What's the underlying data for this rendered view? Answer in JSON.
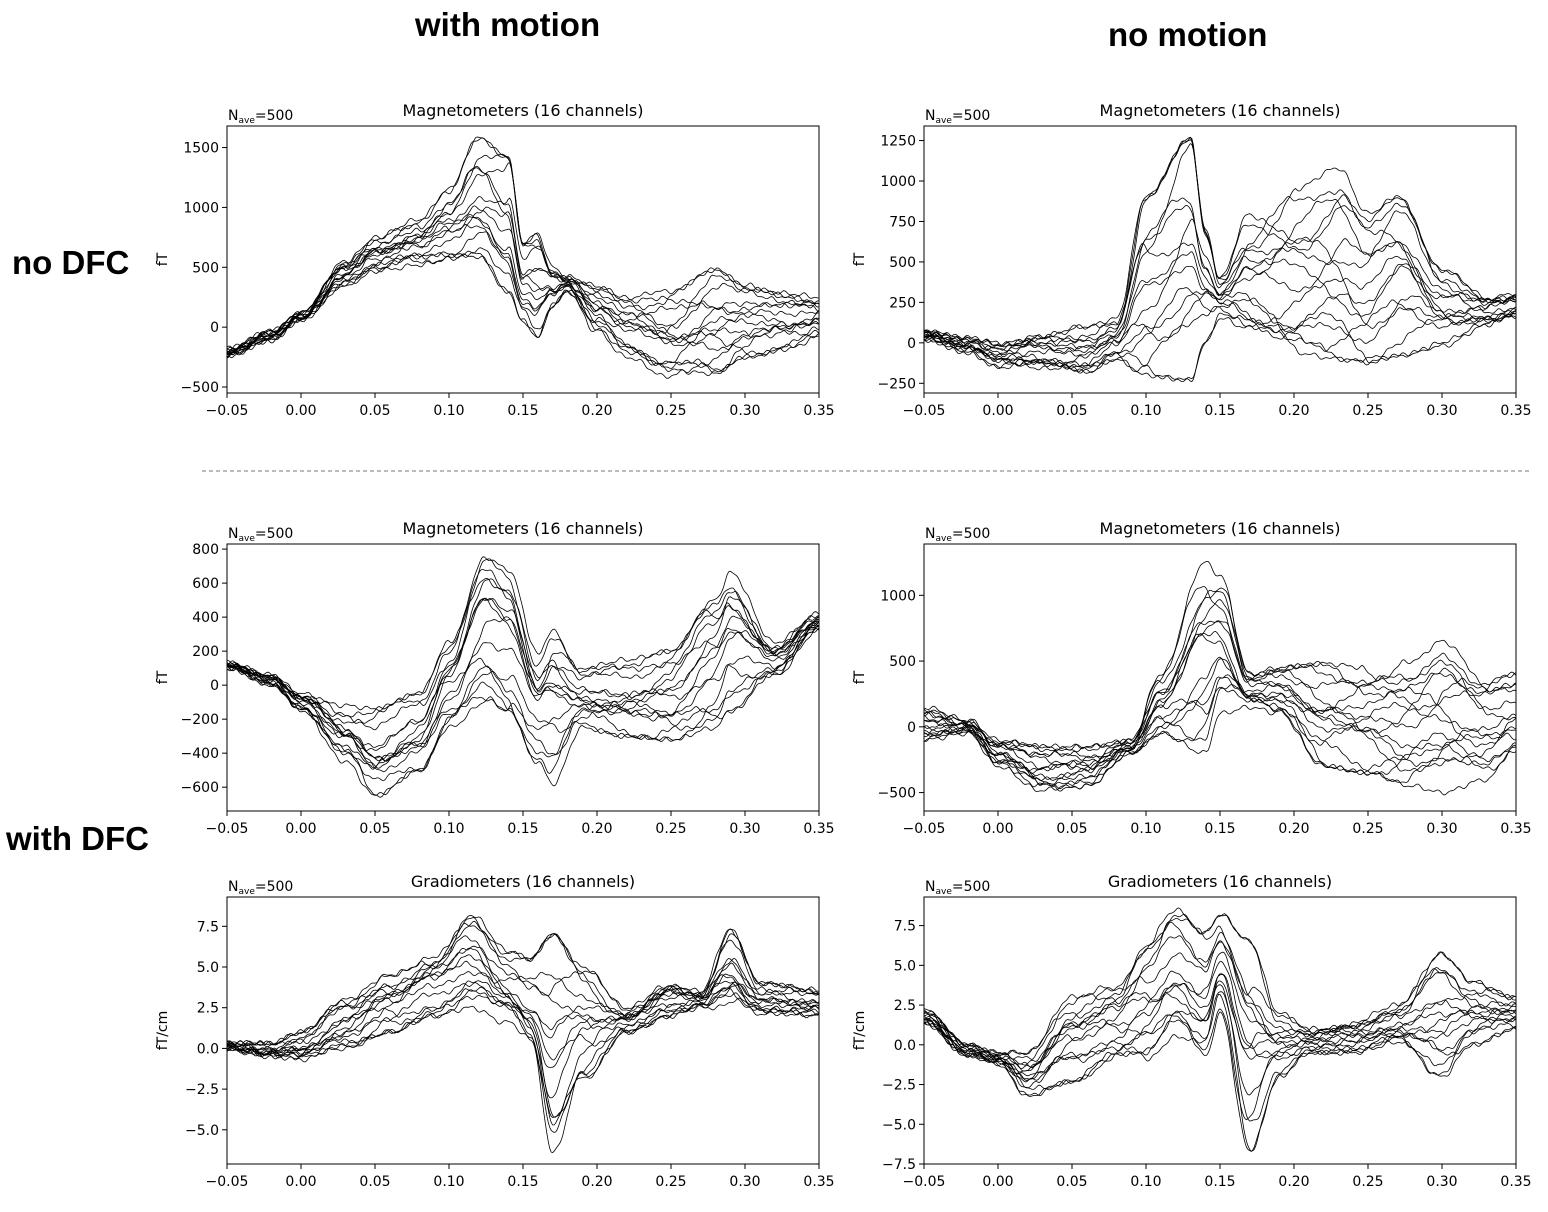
{
  "labels": {
    "col_with_motion": "with motion",
    "col_no_motion": "no motion",
    "row_no_dfc": "no DFC",
    "row_with_dfc": "with DFC"
  },
  "chart_data": [
    {
      "type": "line",
      "id": "p1",
      "title": "Magnetometers (16 channels)",
      "nave": "500",
      "ylabel": "fT",
      "xlim": [
        -0.05,
        0.35
      ],
      "ylim": [
        -550,
        1680
      ],
      "xticks": [
        -0.05,
        0.0,
        0.05,
        0.1,
        0.15,
        0.2,
        0.25,
        0.3,
        0.35
      ],
      "xtick_labels": [
        "−0.05",
        "0.00",
        "0.05",
        "0.10",
        "0.15",
        "0.20",
        "0.25",
        "0.30",
        "0.35"
      ],
      "yticks": [
        -500,
        0,
        500,
        1000,
        1500
      ],
      "ytick_labels": [
        "−500",
        "0",
        "500",
        "1000",
        "1500"
      ],
      "n_channels": 16,
      "envelope": {
        "x": [
          -0.05,
          -0.02,
          0.0,
          0.03,
          0.05,
          0.08,
          0.1,
          0.12,
          0.14,
          0.15,
          0.16,
          0.17,
          0.18,
          0.2,
          0.22,
          0.25,
          0.28,
          0.3,
          0.33,
          0.35
        ],
        "upper": [
          -180,
          -30,
          120,
          550,
          750,
          900,
          1150,
          1580,
          1420,
          700,
          780,
          500,
          420,
          350,
          280,
          300,
          480,
          350,
          280,
          250
        ],
        "lower": [
          -240,
          -110,
          60,
          350,
          460,
          520,
          570,
          560,
          300,
          50,
          -80,
          180,
          300,
          -50,
          -250,
          -430,
          -380,
          -250,
          -180,
          -80
        ]
      }
    },
    {
      "type": "line",
      "id": "p2",
      "title": "Magnetometers (16 channels)",
      "nave": "500",
      "ylabel": "fT",
      "xlim": [
        -0.05,
        0.35
      ],
      "ylim": [
        -310,
        1340
      ],
      "xticks": [
        -0.05,
        0.0,
        0.05,
        0.1,
        0.15,
        0.2,
        0.25,
        0.3,
        0.35
      ],
      "xtick_labels": [
        "−0.05",
        "0.00",
        "0.05",
        "0.10",
        "0.15",
        "0.20",
        "0.25",
        "0.30",
        "0.35"
      ],
      "yticks": [
        -250,
        0,
        250,
        500,
        750,
        1000,
        1250
      ],
      "ytick_labels": [
        "−250",
        "0",
        "250",
        "500",
        "750",
        "1000",
        "1250"
      ],
      "n_channels": 16,
      "envelope": {
        "x": [
          -0.05,
          -0.02,
          0.0,
          0.03,
          0.06,
          0.08,
          0.1,
          0.13,
          0.14,
          0.15,
          0.17,
          0.2,
          0.23,
          0.25,
          0.27,
          0.3,
          0.33,
          0.35
        ],
        "upper": [
          70,
          30,
          0,
          80,
          100,
          150,
          900,
          1260,
          700,
          400,
          800,
          950,
          1080,
          800,
          900,
          450,
          300,
          320
        ],
        "lower": [
          20,
          -60,
          -150,
          -170,
          -180,
          -100,
          -200,
          -230,
          0,
          150,
          -10,
          -60,
          -100,
          -120,
          -80,
          -20,
          100,
          150
        ]
      }
    },
    {
      "type": "line",
      "id": "p3",
      "title": "Magnetometers (16 channels)",
      "nave": "500",
      "ylabel": "fT",
      "xlim": [
        -0.05,
        0.35
      ],
      "ylim": [
        -740,
        830
      ],
      "xticks": [
        -0.05,
        0.0,
        0.05,
        0.1,
        0.15,
        0.2,
        0.25,
        0.3,
        0.35
      ],
      "xtick_labels": [
        "−0.05",
        "0.00",
        "0.05",
        "0.10",
        "0.15",
        "0.20",
        "0.25",
        "0.30",
        "0.35"
      ],
      "yticks": [
        -600,
        -400,
        -200,
        0,
        200,
        400,
        600,
        800
      ],
      "ytick_labels": [
        "−600",
        "−400",
        "−200",
        "0",
        "200",
        "400",
        "600",
        "800"
      ],
      "n_channels": 16,
      "envelope": {
        "x": [
          -0.05,
          -0.02,
          0.0,
          0.03,
          0.05,
          0.08,
          0.1,
          0.125,
          0.14,
          0.16,
          0.17,
          0.19,
          0.22,
          0.25,
          0.28,
          0.29,
          0.32,
          0.35
        ],
        "upper": [
          130,
          60,
          -50,
          -120,
          -140,
          -50,
          250,
          750,
          680,
          200,
          420,
          100,
          150,
          200,
          500,
          660,
          250,
          420
        ],
        "lower": [
          100,
          0,
          -150,
          -450,
          -650,
          -500,
          -250,
          -100,
          -200,
          -450,
          -580,
          -250,
          -300,
          -320,
          -250,
          -150,
          50,
          320
        ]
      }
    },
    {
      "type": "line",
      "id": "p4",
      "title": "Magnetometers (16 channels)",
      "nave": "500",
      "ylabel": "fT",
      "xlim": [
        -0.05,
        0.35
      ],
      "ylim": [
        -640,
        1390
      ],
      "xticks": [
        -0.05,
        0.0,
        0.05,
        0.1,
        0.15,
        0.2,
        0.25,
        0.3,
        0.35
      ],
      "xtick_labels": [
        "−0.05",
        "0.00",
        "0.05",
        "0.10",
        "0.15",
        "0.20",
        "0.25",
        "0.30",
        "0.35"
      ],
      "yticks": [
        -500,
        0,
        500,
        1000
      ],
      "ytick_labels": [
        "−500",
        "0",
        "500",
        "1000"
      ],
      "n_channels": 16,
      "envelope": {
        "x": [
          -0.05,
          -0.02,
          0.0,
          0.03,
          0.06,
          0.09,
          0.11,
          0.14,
          0.15,
          0.17,
          0.19,
          0.22,
          0.25,
          0.28,
          0.3,
          0.33,
          0.35
        ],
        "upper": [
          150,
          50,
          -100,
          -150,
          -150,
          -100,
          400,
          1250,
          1150,
          400,
          450,
          480,
          450,
          500,
          650,
          350,
          400
        ],
        "lower": [
          -100,
          -50,
          -300,
          -500,
          -450,
          -200,
          -50,
          -200,
          100,
          150,
          100,
          -300,
          -350,
          -450,
          -500,
          -400,
          -250
        ]
      }
    },
    {
      "type": "line",
      "id": "p5",
      "title": "Gradiometers (16 channels)",
      "nave": "500",
      "ylabel": "fT/cm",
      "xlim": [
        -0.05,
        0.35
      ],
      "ylim": [
        -7.1,
        9.3
      ],
      "xticks": [
        -0.05,
        0.0,
        0.05,
        0.1,
        0.15,
        0.2,
        0.25,
        0.3,
        0.35
      ],
      "xtick_labels": [
        "−0.05",
        "0.00",
        "0.05",
        "0.10",
        "0.15",
        "0.20",
        "0.25",
        "0.30",
        "0.35"
      ],
      "yticks": [
        -5.0,
        -2.5,
        0.0,
        2.5,
        5.0,
        7.5
      ],
      "ytick_labels": [
        "−5.0",
        "−2.5",
        "0.0",
        "2.5",
        "5.0",
        "7.5"
      ],
      "n_channels": 16,
      "envelope": {
        "x": [
          -0.05,
          -0.02,
          0.0,
          0.03,
          0.06,
          0.09,
          0.115,
          0.14,
          0.155,
          0.17,
          0.19,
          0.22,
          0.25,
          0.27,
          0.29,
          0.31,
          0.35
        ],
        "upper": [
          0.4,
          0.3,
          1.0,
          3.0,
          4.5,
          6.0,
          8.2,
          6.0,
          5.5,
          7.0,
          5.0,
          2.5,
          4.0,
          3.5,
          7.3,
          4.0,
          3.6
        ],
        "lower": [
          -0.1,
          -0.6,
          -0.8,
          0.0,
          1.0,
          2.0,
          2.5,
          1.5,
          0.0,
          -6.5,
          -2.0,
          1.0,
          2.0,
          2.5,
          2.5,
          2.0,
          2.0
        ]
      }
    },
    {
      "type": "line",
      "id": "p6",
      "title": "Gradiometers (16 channels)",
      "nave": "500",
      "ylabel": "fT/cm",
      "xlim": [
        -0.05,
        0.35
      ],
      "ylim": [
        -7.5,
        9.3
      ],
      "xticks": [
        -0.05,
        0.0,
        0.05,
        0.1,
        0.15,
        0.2,
        0.25,
        0.3,
        0.35
      ],
      "xtick_labels": [
        "−0.05",
        "0.00",
        "0.05",
        "0.10",
        "0.15",
        "0.20",
        "0.25",
        "0.30",
        "0.35"
      ],
      "yticks": [
        -7.5,
        -5.0,
        -2.5,
        0.0,
        2.5,
        5.0,
        7.5
      ],
      "ytick_labels": [
        "−7.5",
        "−5.0",
        "−2.5",
        "0.0",
        "2.5",
        "5.0",
        "7.5"
      ],
      "n_channels": 16,
      "envelope": {
        "x": [
          -0.05,
          -0.02,
          0.0,
          0.02,
          0.05,
          0.08,
          0.1,
          0.12,
          0.14,
          0.15,
          0.17,
          0.19,
          0.21,
          0.24,
          0.27,
          0.3,
          0.32,
          0.35
        ],
        "upper": [
          2.2,
          0.0,
          -0.5,
          -0.5,
          3.0,
          4.0,
          6.5,
          8.5,
          7.0,
          8.2,
          6.5,
          2.0,
          1.0,
          1.5,
          2.5,
          5.7,
          4.0,
          3.0
        ],
        "lower": [
          1.3,
          -0.7,
          -1.2,
          -3.2,
          -2.3,
          -1.0,
          -1.0,
          0.5,
          -1.0,
          2.0,
          -6.7,
          -2.0,
          -0.5,
          -0.5,
          0.0,
          -2.0,
          0.0,
          1.0
        ]
      }
    }
  ]
}
